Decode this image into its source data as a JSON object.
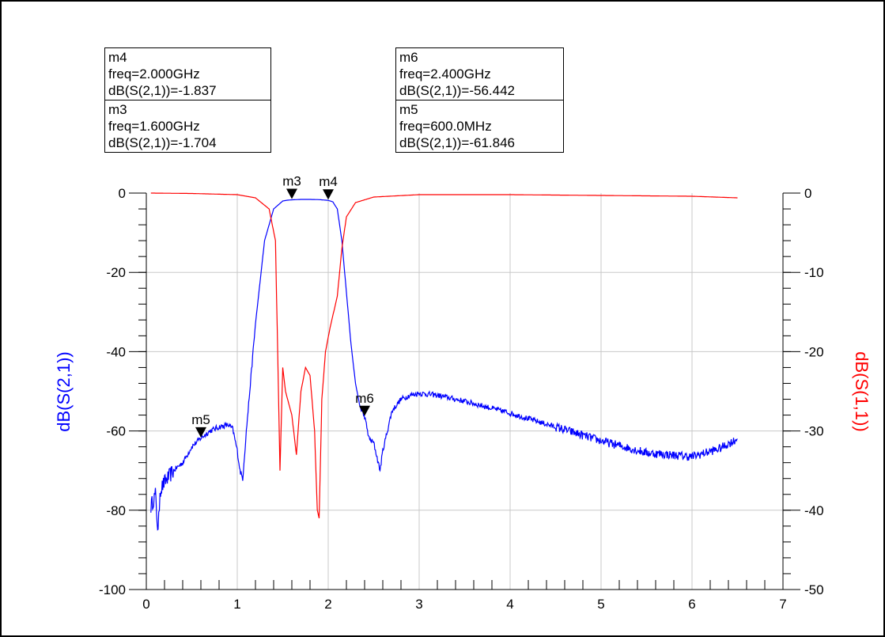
{
  "chart_data": {
    "type": "line",
    "title": "",
    "xlabel": "",
    "x_ticks": [
      "0",
      "1",
      "2",
      "3",
      "4",
      "5",
      "6",
      "7"
    ],
    "xlim": [
      0,
      7
    ],
    "left_axis": {
      "label": "dB(S(2,1))",
      "color": "#0000ff",
      "ylim": [
        -100,
        0
      ],
      "ticks": [
        "0",
        "-20",
        "-40",
        "-60",
        "-80",
        "-100"
      ]
    },
    "right_axis": {
      "label": "dB(S(1,1))",
      "color": "#ff0000",
      "ylim": [
        -50,
        0
      ],
      "ticks": [
        "0",
        "-10",
        "-20",
        "-30",
        "-40",
        "-50"
      ]
    },
    "grid": true,
    "series": [
      {
        "name": "dB(S(2,1))",
        "axis": "left",
        "color": "#0000ff",
        "x": [
          0.05,
          0.1,
          0.13,
          0.15,
          0.2,
          0.3,
          0.4,
          0.5,
          0.6,
          0.7,
          0.8,
          0.9,
          0.95,
          1.0,
          1.03,
          1.06,
          1.1,
          1.2,
          1.3,
          1.4,
          1.5,
          1.55,
          1.6,
          1.7,
          1.8,
          1.9,
          2.0,
          2.05,
          2.1,
          2.15,
          2.2,
          2.25,
          2.3,
          2.35,
          2.4,
          2.45,
          2.5,
          2.55,
          2.57,
          2.6,
          2.7,
          2.8,
          2.9,
          3.0,
          3.2,
          3.5,
          4.0,
          4.5,
          5.0,
          5.5,
          6.0,
          6.3,
          6.5
        ],
        "y": [
          -79,
          -76,
          -86,
          -75,
          -73,
          -70,
          -68,
          -64,
          -61.8,
          -60,
          -59,
          -58.5,
          -59.5,
          -65,
          -70,
          -72,
          -60,
          -33,
          -12,
          -4,
          -2,
          -1.8,
          -1.7,
          -1.6,
          -1.6,
          -1.65,
          -1.84,
          -2.2,
          -4,
          -12,
          -25,
          -38,
          -48,
          -54,
          -56.4,
          -62,
          -63,
          -68,
          -70,
          -65,
          -55,
          -52,
          -51,
          -50.5,
          -51,
          -52.5,
          -55.5,
          -59,
          -62.5,
          -65.5,
          -66.5,
          -64.5,
          -62
        ]
      },
      {
        "name": "dB(S(1,1))",
        "axis": "right",
        "color": "#ff0000",
        "x": [
          0.05,
          0.5,
          1.0,
          1.2,
          1.35,
          1.42,
          1.47,
          1.5,
          1.53,
          1.6,
          1.65,
          1.7,
          1.75,
          1.8,
          1.85,
          1.88,
          1.9,
          1.93,
          1.97,
          2.02,
          2.1,
          2.15,
          2.2,
          2.3,
          2.5,
          3.0,
          4.0,
          5.0,
          6.0,
          6.5
        ],
        "y": [
          0,
          -0.05,
          -0.2,
          -0.6,
          -2,
          -6,
          -35,
          -22,
          -25,
          -28,
          -33,
          -25,
          -22,
          -23,
          -30,
          -40,
          -41,
          -26,
          -20,
          -17,
          -13,
          -7,
          -3,
          -1.2,
          -0.5,
          -0.2,
          -0.2,
          -0.3,
          -0.4,
          -0.6
        ]
      }
    ],
    "markers": [
      {
        "name": "m5",
        "freq": 0.6,
        "value": -61.846
      },
      {
        "name": "m3",
        "freq": 1.6,
        "value": -1.704
      },
      {
        "name": "m4",
        "freq": 2.0,
        "value": -1.837
      },
      {
        "name": "m6",
        "freq": 2.4,
        "value": -56.442
      }
    ],
    "readouts": [
      {
        "lines": [
          "m4",
          "freq=2.000GHz",
          "dB(S(2,1))=-1.837"
        ]
      },
      {
        "lines": [
          "m3",
          "freq=1.600GHz",
          "dB(S(2,1))=-1.704"
        ]
      },
      {
        "lines": [
          "m6",
          "freq=2.400GHz",
          "dB(S(2,1))=-56.442"
        ]
      },
      {
        "lines": [
          "m5",
          "freq=600.0MHz",
          "dB(S(2,1))=-61.846"
        ]
      }
    ]
  }
}
